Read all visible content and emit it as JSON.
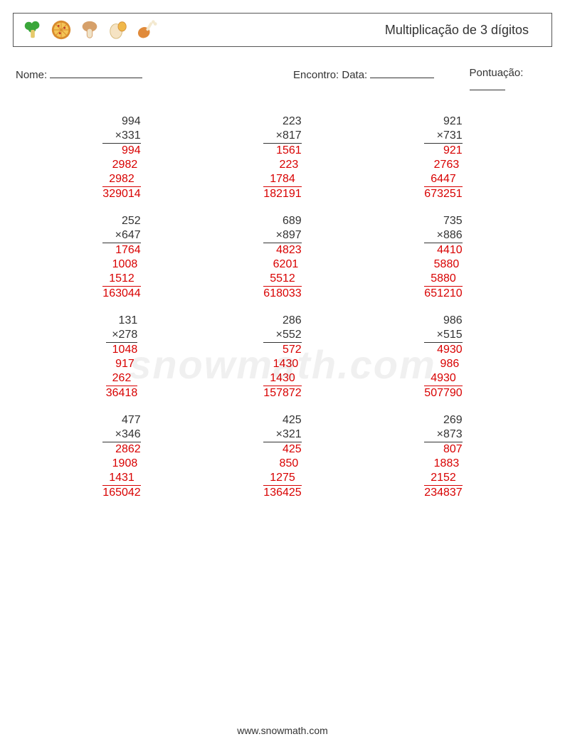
{
  "header": {
    "title": "Multiplicação de 3 dígitos",
    "icons": [
      {
        "name": "broccoli-icon",
        "fill": "#3aa63a",
        "stem": "#e6c96b"
      },
      {
        "name": "pizza-icon",
        "crust": "#d98b2e",
        "cheese": "#f4c557",
        "pepper": "#c0392b"
      },
      {
        "name": "mushroom-icon",
        "cap": "#d6a06a",
        "stem": "#f0e3c8"
      },
      {
        "name": "egg-icon",
        "shell": "#f5e3c3",
        "yolk": "#f0b84a"
      },
      {
        "name": "drumstick-icon",
        "meat": "#e08a3a",
        "bone": "#f3e9d0"
      }
    ]
  },
  "info": {
    "name_label": "Nome:",
    "date_label": "Encontro: Data:",
    "score_label": "Pontuação:"
  },
  "colors": {
    "text": "#333333",
    "answer": "#d80000",
    "border": "#555555",
    "background": "#ffffff"
  },
  "watermark": "snowmath.com",
  "footer": "www.snowmath.com",
  "problems": [
    {
      "a": "994",
      "b": "331",
      "p1": "994",
      "p2": "2982",
      "p3": "2982",
      "res": "329014"
    },
    {
      "a": "223",
      "b": "817",
      "p1": "1561",
      "p2": "223",
      "p3": "1784",
      "res": "182191"
    },
    {
      "a": "921",
      "b": "731",
      "p1": "921",
      "p2": "2763",
      "p3": "6447",
      "res": "673251"
    },
    {
      "a": "252",
      "b": "647",
      "p1": "1764",
      "p2": "1008",
      "p3": "1512",
      "res": "163044"
    },
    {
      "a": "689",
      "b": "897",
      "p1": "4823",
      "p2": "6201",
      "p3": "5512",
      "res": "618033"
    },
    {
      "a": "735",
      "b": "886",
      "p1": "4410",
      "p2": "5880",
      "p3": "5880",
      "res": "651210"
    },
    {
      "a": "131",
      "b": "278",
      "p1": "1048",
      "p2": "917",
      "p3": "262",
      "res": "36418"
    },
    {
      "a": "286",
      "b": "552",
      "p1": "572",
      "p2": "1430",
      "p3": "1430",
      "res": "157872"
    },
    {
      "a": "986",
      "b": "515",
      "p1": "4930",
      "p2": "986",
      "p3": "4930",
      "res": "507790"
    },
    {
      "a": "477",
      "b": "346",
      "p1": "2862",
      "p2": "1908",
      "p3": "1431",
      "res": "165042"
    },
    {
      "a": "425",
      "b": "321",
      "p1": "425",
      "p2": "850",
      "p3": "1275",
      "res": "136425"
    },
    {
      "a": "269",
      "b": "873",
      "p1": "807",
      "p2": "1883",
      "p3": "2152",
      "res": "234837"
    }
  ]
}
